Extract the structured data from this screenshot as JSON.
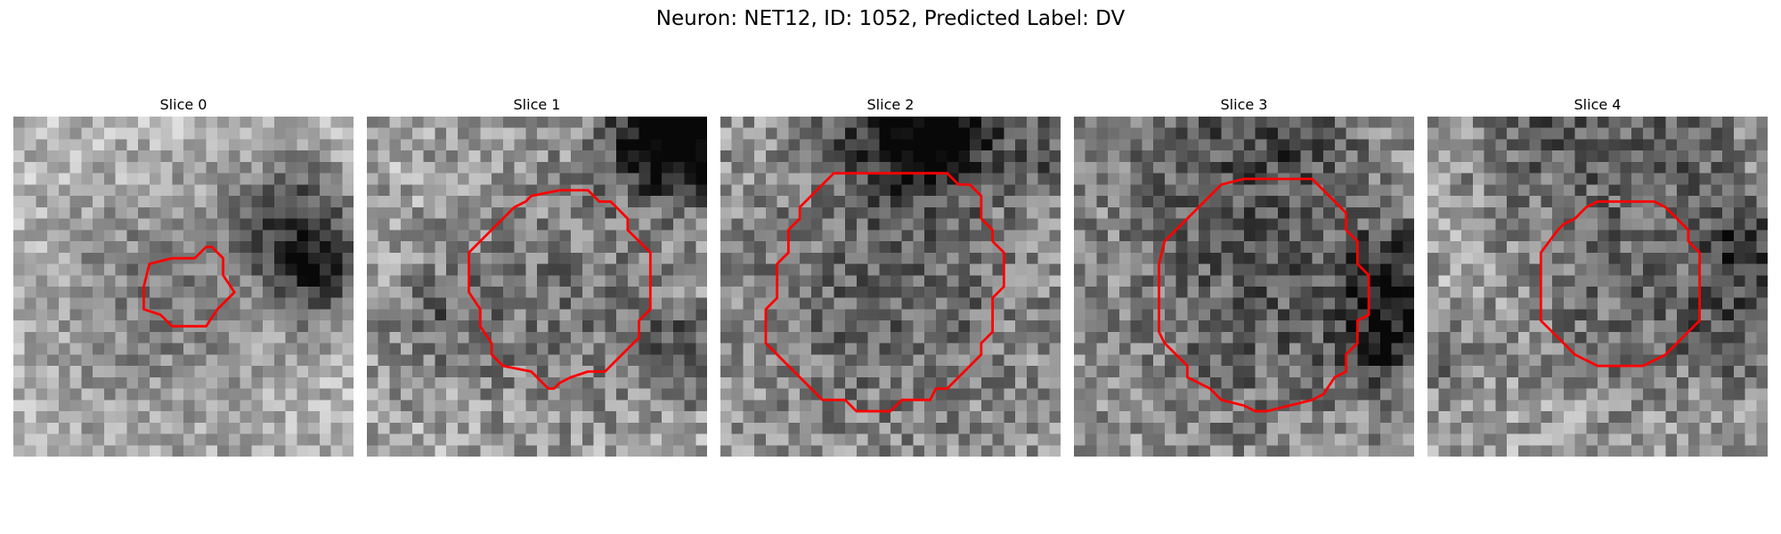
{
  "figure": {
    "title": "Neuron: NET12, ID: 1052, Predicted Label: DV"
  },
  "colors": {
    "contour": "#ff0000",
    "background": "#ffffff"
  },
  "grid": {
    "size": 30,
    "colormap": "gray"
  },
  "panels": [
    {
      "title": "Slice 0",
      "base": 185,
      "amp": 45,
      "dark_spots": [
        [
          24.5,
          9,
          4,
          0.9
        ],
        [
          27,
          14,
          3,
          0.9
        ],
        [
          12,
          14,
          6,
          0.35
        ],
        [
          14,
          22,
          8,
          0.25
        ]
      ],
      "contour": [
        [
          12,
          13
        ],
        [
          14,
          12.5
        ],
        [
          16,
          12.5
        ],
        [
          17,
          11.5
        ],
        [
          17.5,
          11.5
        ],
        [
          18.5,
          12.5
        ],
        [
          18.5,
          14
        ],
        [
          19.5,
          15.5
        ],
        [
          18,
          17
        ],
        [
          17,
          18.5
        ],
        [
          14,
          18.5
        ],
        [
          13,
          17.5
        ],
        [
          11.5,
          17
        ],
        [
          11.5,
          15
        ]
      ]
    },
    {
      "title": "Slice 1",
      "base": 170,
      "amp": 55,
      "dark_spots": [
        [
          28,
          2.5,
          3.5,
          1.0
        ],
        [
          25.5,
          1,
          4,
          0.9
        ],
        [
          16.5,
          16,
          8.5,
          0.45
        ],
        [
          28,
          21,
          3,
          0.6
        ],
        [
          6,
          18,
          3,
          0.4
        ]
      ],
      "contour": [
        [
          9,
          12
        ],
        [
          10,
          11
        ],
        [
          12,
          9
        ],
        [
          13,
          8
        ],
        [
          14,
          7.5
        ],
        [
          14.5,
          7
        ],
        [
          17,
          6.5
        ],
        [
          19.5,
          6.5
        ],
        [
          20.5,
          7.5
        ],
        [
          21.5,
          7.5
        ],
        [
          23,
          9
        ],
        [
          23,
          10
        ],
        [
          25,
          12
        ],
        [
          25,
          17
        ],
        [
          24,
          18
        ],
        [
          24,
          19.5
        ],
        [
          22,
          21.5
        ],
        [
          21.5,
          22
        ],
        [
          21,
          22.5
        ],
        [
          19.5,
          22.5
        ],
        [
          18,
          23
        ],
        [
          17,
          23.5
        ],
        [
          16.5,
          24
        ],
        [
          16,
          24
        ],
        [
          15,
          23
        ],
        [
          14.5,
          22.5
        ],
        [
          12,
          22
        ],
        [
          11,
          21
        ],
        [
          11,
          20
        ],
        [
          10,
          18.5
        ],
        [
          10,
          17
        ],
        [
          9,
          15.5
        ],
        [
          9,
          13
        ]
      ]
    },
    {
      "title": "Slice 2",
      "base": 165,
      "amp": 55,
      "dark_spots": [
        [
          16,
          1,
          4,
          1.0
        ],
        [
          20,
          2,
          3,
          0.8
        ],
        [
          15,
          15,
          11,
          0.55
        ],
        [
          28,
          3,
          3,
          0.5
        ]
      ],
      "contour": [
        [
          7,
          8
        ],
        [
          8,
          7
        ],
        [
          9,
          6
        ],
        [
          10,
          5
        ],
        [
          12,
          5
        ],
        [
          12,
          5
        ],
        [
          20,
          5
        ],
        [
          21,
          6
        ],
        [
          22,
          6
        ],
        [
          23,
          7
        ],
        [
          23,
          9
        ],
        [
          24,
          10
        ],
        [
          24,
          11
        ],
        [
          25,
          12
        ],
        [
          25,
          15
        ],
        [
          24,
          16
        ],
        [
          24,
          19
        ],
        [
          23,
          20
        ],
        [
          23,
          21
        ],
        [
          22,
          22
        ],
        [
          21,
          23
        ],
        [
          20,
          24
        ],
        [
          19,
          24
        ],
        [
          18.5,
          25
        ],
        [
          16,
          25
        ],
        [
          15,
          26
        ],
        [
          12,
          26
        ],
        [
          11,
          25
        ],
        [
          9,
          25
        ],
        [
          8,
          24
        ],
        [
          7,
          23
        ],
        [
          6,
          22
        ],
        [
          5,
          21
        ],
        [
          4,
          20
        ],
        [
          4,
          18
        ],
        [
          4,
          17
        ],
        [
          5,
          16
        ],
        [
          5,
          14
        ],
        [
          5,
          13
        ],
        [
          6,
          12
        ],
        [
          6,
          10
        ],
        [
          7,
          9
        ]
      ]
    },
    {
      "title": "Slice 3",
      "base": 160,
      "amp": 55,
      "dark_spots": [
        [
          17,
          16,
          10,
          0.55
        ],
        [
          28,
          14,
          3,
          0.8
        ],
        [
          27.5,
          20,
          2.5,
          0.8
        ],
        [
          10,
          2,
          6,
          0.4
        ],
        [
          20,
          1,
          4,
          0.5
        ]
      ],
      "contour": [
        [
          9,
          10
        ],
        [
          11,
          8
        ],
        [
          12,
          7
        ],
        [
          13,
          6
        ],
        [
          15,
          5.5
        ],
        [
          15,
          5.5
        ],
        [
          21,
          5.5
        ],
        [
          22,
          6.5
        ],
        [
          22.5,
          7
        ],
        [
          24,
          8.5
        ],
        [
          24,
          10
        ],
        [
          25,
          11
        ],
        [
          25,
          13
        ],
        [
          26,
          14
        ],
        [
          26,
          17.5
        ],
        [
          25,
          18
        ],
        [
          25,
          20
        ],
        [
          24,
          21
        ],
        [
          24,
          22.5
        ],
        [
          23,
          23
        ],
        [
          22,
          24.5
        ],
        [
          21,
          25
        ],
        [
          17,
          26
        ],
        [
          16,
          26
        ],
        [
          15,
          25.5
        ],
        [
          13,
          25
        ],
        [
          12,
          24
        ],
        [
          10,
          23
        ],
        [
          10,
          22
        ],
        [
          9,
          21
        ],
        [
          8,
          20
        ],
        [
          7.5,
          19
        ],
        [
          7.5,
          13
        ],
        [
          8,
          11
        ]
      ]
    },
    {
      "title": "Slice 4",
      "base": 165,
      "amp": 55,
      "dark_spots": [
        [
          10,
          1,
          5,
          0.55
        ],
        [
          22,
          1.5,
          5,
          0.55
        ],
        [
          17,
          15.5,
          7,
          0.5
        ],
        [
          28,
          11,
          2.5,
          0.8
        ],
        [
          28,
          18,
          4,
          0.6
        ],
        [
          2,
          22,
          2.5,
          0.4
        ]
      ],
      "contour": [
        [
          10,
          12
        ],
        [
          11.5,
          10
        ],
        [
          12,
          9.5
        ],
        [
          13,
          9
        ],
        [
          14,
          8
        ],
        [
          15,
          7.5
        ],
        [
          20,
          7.5
        ],
        [
          21,
          8
        ],
        [
          22,
          9
        ],
        [
          23,
          10
        ],
        [
          23,
          11
        ],
        [
          24,
          12
        ],
        [
          24,
          18
        ],
        [
          23,
          19
        ],
        [
          22,
          20
        ],
        [
          21,
          21
        ],
        [
          20,
          21.5
        ],
        [
          19,
          22
        ],
        [
          18,
          22
        ],
        [
          17,
          22
        ],
        [
          16,
          22
        ],
        [
          15,
          22
        ],
        [
          14,
          21.5
        ],
        [
          13,
          21
        ],
        [
          12,
          20
        ],
        [
          11,
          19
        ],
        [
          10,
          18
        ],
        [
          10,
          12
        ]
      ]
    }
  ]
}
